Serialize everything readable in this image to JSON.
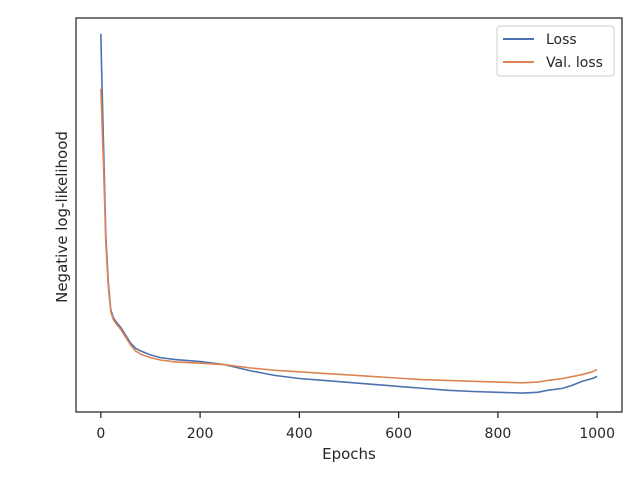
{
  "chart_data": {
    "type": "line",
    "title": "",
    "xlabel": "Epochs",
    "ylabel": "Negative log-likelihood",
    "xlim": [
      -50,
      1050
    ],
    "ylim": [
      0,
      1
    ],
    "x_ticks": [
      0,
      200,
      400,
      600,
      800,
      1000
    ],
    "x_tick_labels": [
      "0",
      "200",
      "400",
      "600",
      "800",
      "1000"
    ],
    "y_tick_labels": [],
    "grid": false,
    "legend_placement": "top-right",
    "series": [
      {
        "name": "Loss",
        "color": "#4c72b0",
        "points": [
          [
            0,
            0.96
          ],
          [
            2,
            0.85
          ],
          [
            5,
            0.7
          ],
          [
            8,
            0.55
          ],
          [
            10,
            0.45
          ],
          [
            15,
            0.33
          ],
          [
            20,
            0.26
          ],
          [
            25,
            0.24
          ],
          [
            30,
            0.23
          ],
          [
            40,
            0.215
          ],
          [
            50,
            0.195
          ],
          [
            60,
            0.175
          ],
          [
            70,
            0.162
          ],
          [
            80,
            0.155
          ],
          [
            100,
            0.145
          ],
          [
            120,
            0.138
          ],
          [
            150,
            0.133
          ],
          [
            200,
            0.128
          ],
          [
            250,
            0.12
          ],
          [
            300,
            0.105
          ],
          [
            350,
            0.093
          ],
          [
            400,
            0.085
          ],
          [
            450,
            0.08
          ],
          [
            500,
            0.075
          ],
          [
            550,
            0.07
          ],
          [
            600,
            0.065
          ],
          [
            650,
            0.06
          ],
          [
            700,
            0.055
          ],
          [
            750,
            0.052
          ],
          [
            800,
            0.05
          ],
          [
            850,
            0.048
          ],
          [
            880,
            0.05
          ],
          [
            900,
            0.055
          ],
          [
            930,
            0.06
          ],
          [
            950,
            0.068
          ],
          [
            970,
            0.078
          ],
          [
            990,
            0.085
          ],
          [
            1000,
            0.09
          ]
        ]
      },
      {
        "name": "Val. loss",
        "color": "#dd8452",
        "points": [
          [
            0,
            0.82
          ],
          [
            2,
            0.75
          ],
          [
            5,
            0.64
          ],
          [
            8,
            0.52
          ],
          [
            10,
            0.43
          ],
          [
            15,
            0.32
          ],
          [
            20,
            0.255
          ],
          [
            25,
            0.235
          ],
          [
            30,
            0.225
          ],
          [
            40,
            0.21
          ],
          [
            50,
            0.19
          ],
          [
            60,
            0.17
          ],
          [
            70,
            0.155
          ],
          [
            80,
            0.147
          ],
          [
            100,
            0.138
          ],
          [
            120,
            0.132
          ],
          [
            150,
            0.127
          ],
          [
            200,
            0.124
          ],
          [
            250,
            0.12
          ],
          [
            300,
            0.112
          ],
          [
            350,
            0.106
          ],
          [
            400,
            0.102
          ],
          [
            450,
            0.098
          ],
          [
            500,
            0.094
          ],
          [
            550,
            0.09
          ],
          [
            600,
            0.086
          ],
          [
            650,
            0.082
          ],
          [
            700,
            0.08
          ],
          [
            750,
            0.078
          ],
          [
            800,
            0.076
          ],
          [
            850,
            0.074
          ],
          [
            880,
            0.076
          ],
          [
            900,
            0.08
          ],
          [
            930,
            0.085
          ],
          [
            950,
            0.09
          ],
          [
            970,
            0.095
          ],
          [
            990,
            0.102
          ],
          [
            1000,
            0.108
          ]
        ]
      }
    ]
  }
}
